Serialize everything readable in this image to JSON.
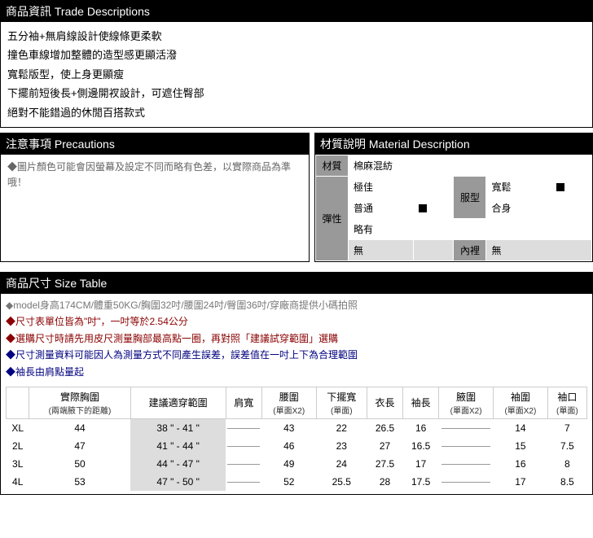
{
  "trade": {
    "header": "商品資訊 Trade Descriptions",
    "lines": [
      "五分袖+無肩線設計使線條更柔軟",
      "撞色車線增加整體的造型感更顯活潑",
      "寬鬆版型，使上身更顯瘦",
      "下擺前短後長+側邊開衩設計，可遮住臀部",
      "絕對不能錯過的休閒百搭款式"
    ]
  },
  "precautions": {
    "header": "注意事項 Precautions",
    "text": "◆圖片顏色可能會因螢幕及設定不同而略有色差，以實際商品為準哦！"
  },
  "material": {
    "header": "材質說明 Material Description",
    "mat_label": "材質",
    "mat_value": "棉麻混紡",
    "elastic_label": "彈性",
    "elastic_opts": [
      "極佳",
      "普通",
      "略有",
      "無"
    ],
    "elastic_selected": 1,
    "fit_label": "服型",
    "fit_opts": [
      "寬鬆",
      "合身"
    ],
    "fit_selected": 0,
    "lining_label": "內裡",
    "lining_value": "無"
  },
  "size": {
    "header": "商品尺寸 Size Table",
    "notes": [
      {
        "cls": "note-grey",
        "text": "◆model身高174CM/體重50KG/胸圍32吋/腰圍24吋/臀圍36吋/穿廠商提供小碼拍照"
      },
      {
        "cls": "note-red",
        "text": "◆尺寸表單位皆為\"吋\"，一吋等於2.54公分"
      },
      {
        "cls": "note-red",
        "text": "◆選購尺寸時請先用皮尺測量胸部最高點一圈，再對照「建議試穿範圍」選購"
      },
      {
        "cls": "note-blue",
        "text": "◆尺寸測量資料可能因人為測量方式不同產生誤差，誤差值在一吋上下為合理範圍"
      },
      {
        "cls": "note-blue",
        "text": "◆袖長由肩點量起"
      }
    ],
    "columns": [
      {
        "label": "",
        "sub": ""
      },
      {
        "label": "實際胸圍",
        "sub": "(兩端腋下的距離)"
      },
      {
        "label": "建議適穿範圍",
        "sub": ""
      },
      {
        "label": "肩寬",
        "sub": ""
      },
      {
        "label": "腰圍",
        "sub": "(單面X2)"
      },
      {
        "label": "下擺寬",
        "sub": "(單面)"
      },
      {
        "label": "衣長",
        "sub": ""
      },
      {
        "label": "袖長",
        "sub": ""
      },
      {
        "label": "腋圍",
        "sub": "(單面X2)"
      },
      {
        "label": "袖圍",
        "sub": "(單面X2)"
      },
      {
        "label": "袖口",
        "sub": "(單面)"
      }
    ],
    "rows": [
      {
        "size": "XL",
        "bust": "44",
        "range": "38 \" - 41 \"",
        "shoulder": "",
        "waist": "43",
        "hem": "22",
        "length": "26.5",
        "sleeve": "16",
        "arm": "",
        "cuff": "14",
        "opening": "7"
      },
      {
        "size": "2L",
        "bust": "47",
        "range": "41 \" - 44 \"",
        "shoulder": "",
        "waist": "46",
        "hem": "23",
        "length": "27",
        "sleeve": "16.5",
        "arm": "",
        "cuff": "15",
        "opening": "7.5"
      },
      {
        "size": "3L",
        "bust": "50",
        "range": "44 \" - 47 \"",
        "shoulder": "",
        "waist": "49",
        "hem": "24",
        "length": "27.5",
        "sleeve": "17",
        "arm": "",
        "cuff": "16",
        "opening": "8"
      },
      {
        "size": "4L",
        "bust": "53",
        "range": "47 \" - 50 \"",
        "shoulder": "",
        "waist": "52",
        "hem": "25.5",
        "length": "28",
        "sleeve": "17.5",
        "arm": "",
        "cuff": "17",
        "opening": "8.5"
      }
    ]
  }
}
